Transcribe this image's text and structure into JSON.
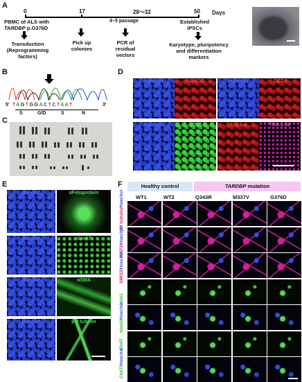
{
  "panels": {
    "A": "A",
    "B": "B",
    "C": "C",
    "D": "D",
    "E": "E",
    "F": "F"
  },
  "panelA": {
    "days": [
      "0",
      "17",
      "28～32",
      "50"
    ],
    "days_unit": "Days",
    "timeline_note": "4~5 passage",
    "top_left": "PBMC of ALS with",
    "top_left_gene": "TARDBP",
    "top_left_mut": "p.G376D",
    "top_right_1": "Established",
    "top_right_2": "iPSCs",
    "steps": [
      {
        "line1": "Transduction",
        "line2": "(Reprogramming",
        "line3": "factors)"
      },
      {
        "line1": "Pick up",
        "line2": "colonies",
        "line3": ""
      },
      {
        "line1": "PCR of",
        "line2": "residual",
        "line3": "vectors"
      },
      {
        "line1": "Karyotype, pluripotency",
        "line2": "and differentiation",
        "line3": "markers"
      }
    ]
  },
  "panelB": {
    "seq_prime5": "5'",
    "seq_prime3": "3'",
    "bases": [
      "T",
      "A",
      "G",
      "T",
      "G",
      "G",
      "A",
      "C",
      "T",
      "C",
      "T",
      "A",
      "A",
      "T"
    ],
    "codons": [
      "S",
      "G/D",
      "S",
      "N"
    ]
  },
  "panelD": {
    "row1": [
      {
        "label": "Hoechst",
        "color": "#3b5bff"
      },
      {
        "label": "NANOG",
        "color": "#ff3030"
      },
      {
        "label": "Hoechst",
        "color": "#3b5bff"
      },
      {
        "label": "OCT4",
        "color": "#ff3030"
      }
    ],
    "row2": [
      {
        "label": "Hoechst",
        "color": "#3b5bff"
      },
      {
        "label": "SOX2",
        "color": "#40e040"
      },
      {
        "label": "SSEA-4",
        "color": "#ff3030"
      },
      {
        "label": "TRA-1-60",
        "color": "#ff40d0"
      }
    ]
  },
  "panelE": {
    "rows": [
      {
        "left": "Hoechst",
        "right": "αFetoprotein"
      },
      {
        "left": "Hoechst",
        "right": "Sox17"
      },
      {
        "left": "Hoechst",
        "right": "αSMA"
      },
      {
        "left": "Hoechst",
        "right": "βIII tubulin"
      }
    ]
  },
  "panelF": {
    "group_healthy": "Healthy control",
    "group_mut_gene": "TARDBP",
    "group_mut_word": "mutation",
    "columns": [
      "WT1",
      "WT2",
      "Q343R",
      "M337V",
      "G376D"
    ],
    "rows": [
      {
        "a": "βIII tubulin/",
        "b": "Hoechst"
      },
      {
        "a": "MAP2/",
        "b": "Hoechst"
      },
      {
        "a": "SMI32/",
        "b": "Hoechst"
      },
      {
        "a": "Islet1",
        "b": ""
      },
      {
        "a": "Islet1/",
        "b": "Hoechst"
      },
      {
        "a": "ChAT",
        "b": ""
      },
      {
        "a": "ChAT/",
        "b": "Hoechst"
      }
    ]
  }
}
